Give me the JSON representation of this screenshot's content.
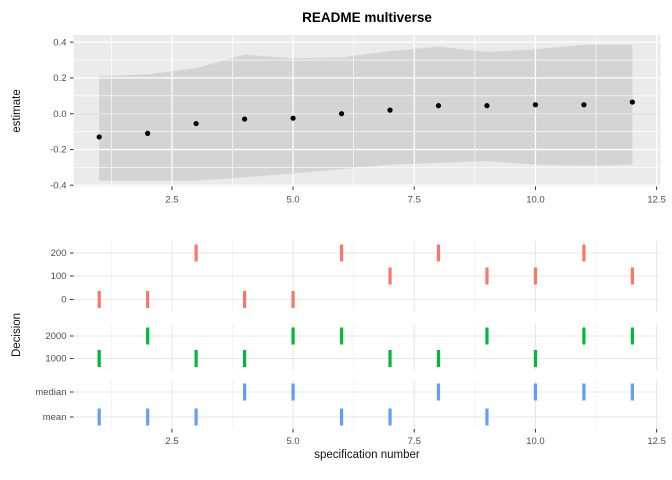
{
  "figure": {
    "title": "README multiverse"
  },
  "colors": {
    "red": "#F8766D",
    "green": "#00BA38",
    "blue": "#619CFF",
    "panel_bg": "#EBEBEB",
    "ribbon": "#D4D4D4",
    "grid_white": "#FFFFFF",
    "grid_major_bottom": "#E7E7E7",
    "grid_minor_bottom": "#F1F1F1",
    "axis_text": "#4D4D4D",
    "tick_mark": "#333333",
    "zero_line": "#000000",
    "point": "#000000"
  },
  "chart_data": [
    {
      "type": "scatter",
      "title": "README multiverse",
      "xlabel": "",
      "ylabel": "estimate",
      "x": [
        1,
        2,
        3,
        4,
        5,
        6,
        7,
        8,
        9,
        10,
        11,
        12
      ],
      "series": [
        {
          "name": "estimate",
          "values": [
            -0.13,
            -0.11,
            -0.055,
            -0.03,
            -0.025,
            0.0,
            0.02,
            0.045,
            0.045,
            0.05,
            0.05,
            0.065
          ]
        },
        {
          "name": "ribbon_upper",
          "values": [
            0.21,
            0.22,
            0.255,
            0.33,
            0.31,
            0.315,
            0.35,
            0.375,
            0.345,
            0.36,
            0.385,
            0.385
          ]
        },
        {
          "name": "ribbon_lower",
          "values": [
            -0.375,
            -0.375,
            -0.375,
            -0.355,
            -0.335,
            -0.31,
            -0.285,
            -0.275,
            -0.265,
            -0.285,
            -0.29,
            -0.285
          ]
        }
      ],
      "x_ticks": [
        2.5,
        5.0,
        7.5,
        10.0,
        12.5
      ],
      "y_ticks": [
        0.4,
        0.2,
        0.0,
        -0.2,
        -0.4
      ],
      "xlim": [
        0.47,
        12.58
      ],
      "ylim": [
        -0.407,
        0.44
      ],
      "zero_line": 0,
      "grid": true,
      "legend": false
    },
    {
      "type": "heatmap",
      "title": "",
      "xlabel": "specification number",
      "ylabel": "Decision",
      "x_ticks": [
        2.5,
        5.0,
        7.5,
        10.0,
        12.5
      ],
      "xlim": [
        0.47,
        12.58
      ],
      "grid": true,
      "legend": false,
      "groups": [
        {
          "color": "#F8766D",
          "rows": [
            {
              "label": "200",
              "specs": [
                3,
                6,
                8,
                11
              ]
            },
            {
              "label": "100",
              "specs": [
                7,
                9,
                10,
                12
              ]
            },
            {
              "label": "0",
              "specs": [
                1,
                2,
                4,
                5
              ]
            }
          ]
        },
        {
          "color": "#00BA38",
          "rows": [
            {
              "label": "2000",
              "specs": [
                2,
                5,
                6,
                9,
                11,
                12
              ]
            },
            {
              "label": "1000",
              "specs": [
                1,
                3,
                4,
                7,
                8,
                10
              ]
            }
          ]
        },
        {
          "color": "#619CFF",
          "rows": [
            {
              "label": "median",
              "specs": [
                4,
                5,
                8,
                10,
                11,
                12
              ]
            },
            {
              "label": "mean",
              "specs": [
                1,
                2,
                3,
                6,
                7,
                9
              ]
            }
          ]
        }
      ]
    }
  ]
}
